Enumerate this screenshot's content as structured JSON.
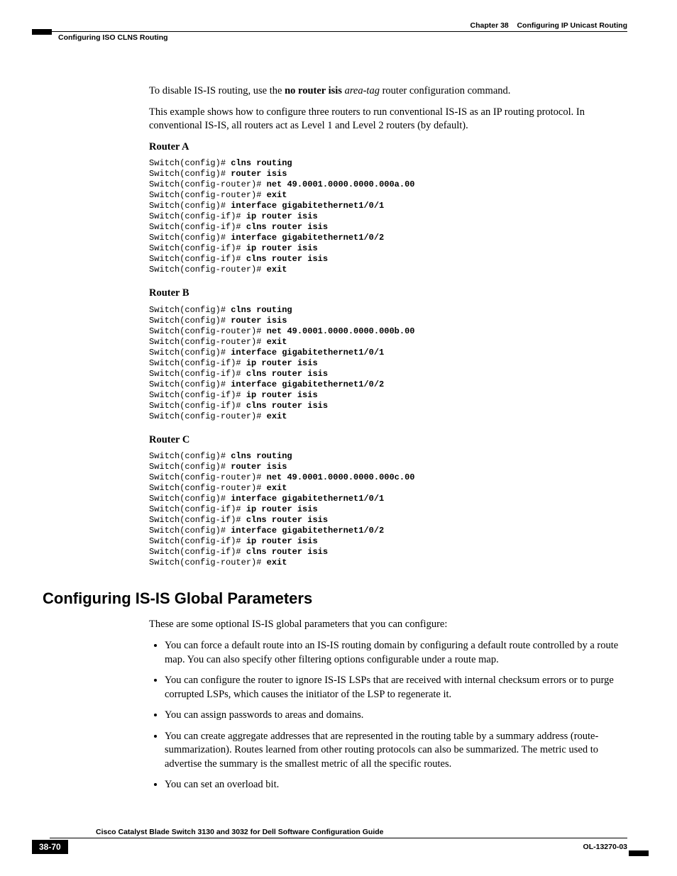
{
  "header": {
    "chapter": "Chapter 38",
    "chapter_title": "Configuring IP Unicast Routing",
    "section": "Configuring ISO CLNS Routing"
  },
  "intro": {
    "p1_pre": "To disable IS-IS routing, use the ",
    "p1_bold": "no router isis ",
    "p1_italic": "area-tag",
    "p1_post": " router configuration command.",
    "p2": "This example shows how to configure three routers to run conventional IS-IS as an IP routing protocol. In conventional IS-IS, all routers act as Level 1 and Level 2 routers (by default)."
  },
  "routers": {
    "a": {
      "title": "Router A",
      "lines": [
        {
          "p": "Switch(config)# ",
          "c": "clns routing"
        },
        {
          "p": "Switch(config)# ",
          "c": "router isis"
        },
        {
          "p": "Switch(config-router)# ",
          "c": "net 49.0001.0000.0000.000a.00"
        },
        {
          "p": "Switch(config-router)# ",
          "c": "exit"
        },
        {
          "p": "Switch(config)# ",
          "c": "interface gigabitethernet1/0/1"
        },
        {
          "p": "Switch(config-if)# ",
          "c": "ip router isis"
        },
        {
          "p": "Switch(config-if)# ",
          "c": "clns router isis"
        },
        {
          "p": "Switch(config)# ",
          "c": "interface gigabitethernet1/0/2"
        },
        {
          "p": "Switch(config-if)# ",
          "c": "ip router isis"
        },
        {
          "p": "Switch(config-if)# ",
          "c": "clns router isis"
        },
        {
          "p": "Switch(config-router)# ",
          "c": "exit"
        }
      ]
    },
    "b": {
      "title": "Router B",
      "lines": [
        {
          "p": "Switch(config)# ",
          "c": "clns routing"
        },
        {
          "p": "Switch(config)# ",
          "c": "router isis"
        },
        {
          "p": "Switch(config-router)# ",
          "c": "net 49.0001.0000.0000.000b.00"
        },
        {
          "p": "Switch(config-router)# ",
          "c": "exit"
        },
        {
          "p": "Switch(config)# ",
          "c": "interface gigabitethernet1/0/1"
        },
        {
          "p": "Switch(config-if)# ",
          "c": "ip router isis"
        },
        {
          "p": "Switch(config-if)# ",
          "c": "clns router isis"
        },
        {
          "p": "Switch(config)# ",
          "c": "interface gigabitethernet1/0/2"
        },
        {
          "p": "Switch(config-if)# ",
          "c": "ip router isis"
        },
        {
          "p": "Switch(config-if)# ",
          "c": "clns router isis"
        },
        {
          "p": "Switch(config-router)# ",
          "c": "exit"
        }
      ]
    },
    "c": {
      "title": "Router C",
      "lines": [
        {
          "p": "Switch(config)# ",
          "c": "clns routing"
        },
        {
          "p": "Switch(config)# ",
          "c": "router isis"
        },
        {
          "p": "Switch(config-router)# ",
          "c": "net 49.0001.0000.0000.000c.00"
        },
        {
          "p": "Switch(config-router)# ",
          "c": "exit"
        },
        {
          "p": "Switch(config)# ",
          "c": "interface gigabitethernet1/0/1"
        },
        {
          "p": "Switch(config-if)# ",
          "c": "ip router isis"
        },
        {
          "p": "Switch(config-if)# ",
          "c": "clns router isis"
        },
        {
          "p": "Switch(config)# ",
          "c": "interface gigabitethernet1/0/2"
        },
        {
          "p": "Switch(config-if)# ",
          "c": "ip router isis"
        },
        {
          "p": "Switch(config-if)# ",
          "c": "clns router isis"
        },
        {
          "p": "Switch(config-router)# ",
          "c": "exit"
        }
      ]
    }
  },
  "section2": {
    "heading": "Configuring IS-IS Global Parameters",
    "intro": "These are some optional IS-IS global parameters that you can configure:",
    "bullets": [
      "You can force a default route into an IS-IS routing domain by configuring a default route controlled by a route map. You can also specify other filtering options configurable under a route map.",
      "You can configure the router to ignore IS-IS LSPs that are received with internal checksum errors or to purge corrupted LSPs, which causes the initiator of the LSP to regenerate it.",
      "You can assign passwords to areas and domains.",
      "You can create aggregate addresses that are represented in the routing table by a summary address (route-summarization). Routes learned from other routing protocols can also be summarized. The metric used to advertise the summary is the smallest metric of all the specific routes.",
      "You can set an overload bit."
    ]
  },
  "footer": {
    "book_title": "Cisco Catalyst Blade Switch 3130 and 3032 for Dell Software Configuration Guide",
    "page_num": "38-70",
    "doc_id": "OL-13270-03"
  }
}
